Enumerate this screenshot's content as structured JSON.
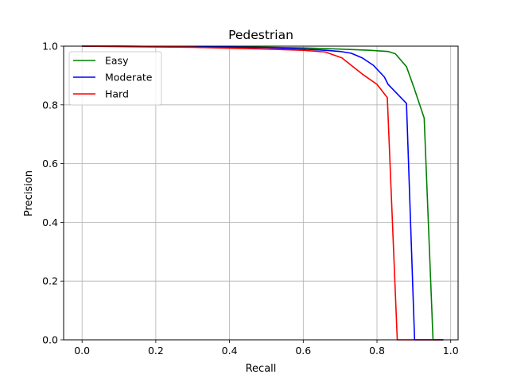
{
  "chart_data": {
    "type": "line",
    "title": "Pedestrian",
    "xlabel": "Recall",
    "ylabel": "Precision",
    "xlim": [
      -0.05,
      1.02
    ],
    "ylim": [
      0.0,
      1.0
    ],
    "xticks": [
      0.0,
      0.2,
      0.4,
      0.6,
      0.8,
      1.0
    ],
    "yticks": [
      0.0,
      0.2,
      0.4,
      0.6,
      0.8,
      1.0
    ],
    "xtick_labels": [
      "0.0",
      "0.2",
      "0.4",
      "0.6",
      "0.8",
      "1.0"
    ],
    "ytick_labels": [
      "0.0",
      "0.2",
      "0.4",
      "0.6",
      "0.8",
      "1.0"
    ],
    "grid": true,
    "legend_position": "top-left",
    "series": [
      {
        "name": "Easy",
        "color": "#008000",
        "x": [
          0.0,
          0.1,
          0.3,
          0.5,
          0.6,
          0.7,
          0.78,
          0.83,
          0.85,
          0.88,
          0.9,
          0.928,
          0.952,
          0.98
        ],
        "y": [
          1.0,
          1.0,
          0.998,
          0.996,
          0.994,
          0.99,
          0.986,
          0.982,
          0.974,
          0.93,
          0.86,
          0.755,
          0.0,
          0.0
        ]
      },
      {
        "name": "Moderate",
        "color": "#0000ff",
        "x": [
          0.0,
          0.1,
          0.3,
          0.5,
          0.6,
          0.66,
          0.7,
          0.73,
          0.76,
          0.79,
          0.82,
          0.83,
          0.88,
          0.902,
          0.98
        ],
        "y": [
          1.0,
          1.0,
          0.998,
          0.995,
          0.99,
          0.986,
          0.982,
          0.976,
          0.96,
          0.935,
          0.895,
          0.87,
          0.805,
          0.0,
          0.0
        ]
      },
      {
        "name": "Hard",
        "color": "#ff0000",
        "x": [
          0.0,
          0.12,
          0.3,
          0.4,
          0.5,
          0.6,
          0.66,
          0.705,
          0.73,
          0.76,
          0.8,
          0.828,
          0.855,
          0.98
        ],
        "y": [
          1.0,
          0.998,
          0.996,
          0.993,
          0.99,
          0.986,
          0.98,
          0.96,
          0.935,
          0.905,
          0.87,
          0.825,
          0.0,
          0.0
        ]
      }
    ]
  }
}
